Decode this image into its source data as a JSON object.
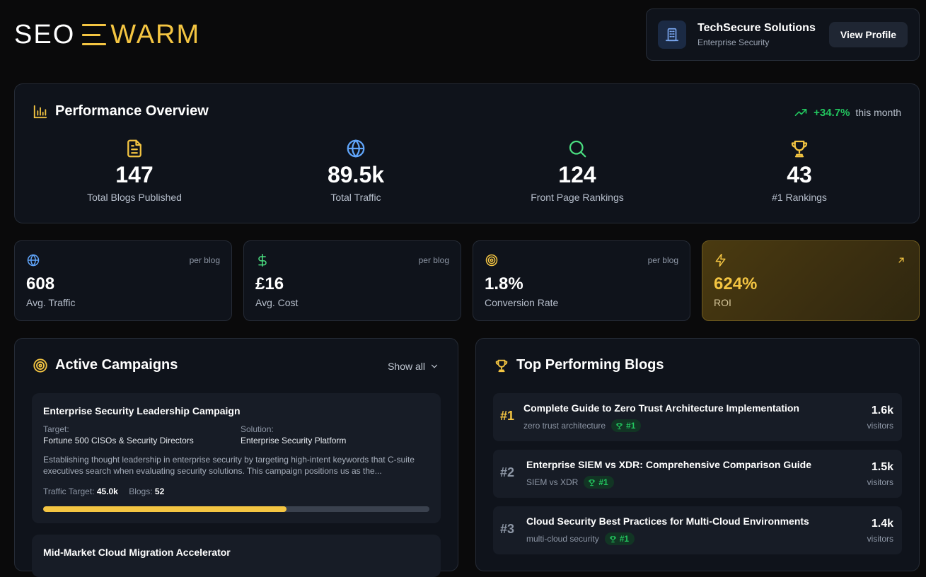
{
  "header": {
    "logo_left": "SEO",
    "logo_right": "WARM",
    "logo_colors": {
      "white": "#ffffff",
      "gold": "#f4c542"
    },
    "profile": {
      "icon": "building-icon",
      "name": "TechSecure Solutions",
      "subtitle": "Enterprise Security",
      "button_label": "View Profile"
    }
  },
  "performance": {
    "title": "Performance Overview",
    "title_icon": "bar-chart-icon",
    "trend_icon": "trending-up-icon",
    "trend_value": "+34.7%",
    "trend_label": "this month",
    "trend_color": "#22c55e",
    "stats": [
      {
        "icon": "document-icon",
        "value": "147",
        "label": "Total Blogs Published",
        "color": "#f4c542"
      },
      {
        "icon": "globe-icon",
        "value": "89.5k",
        "label": "Total Traffic",
        "color": "#60a5fa"
      },
      {
        "icon": "search-icon",
        "value": "124",
        "label": "Front Page Rankings",
        "color": "#4ade80"
      },
      {
        "icon": "trophy-icon",
        "value": "43",
        "label": "#1 Rankings",
        "color": "#f4c542"
      }
    ]
  },
  "metrics": [
    {
      "icon": "globe-icon",
      "per": "per blog",
      "value": "608",
      "label": "Avg. Traffic",
      "color": "#60a5fa"
    },
    {
      "icon": "dollar-icon",
      "per": "per blog",
      "value": "£16",
      "label": "Avg. Cost",
      "color": "#4ade80"
    },
    {
      "icon": "target-icon",
      "per": "per blog",
      "value": "1.8%",
      "label": "Conversion Rate",
      "color": "#f4c542"
    },
    {
      "icon": "lightning-icon",
      "value": "624%",
      "label": "ROI",
      "color": "#f4c542",
      "corner_icon": "arrow-up-right-icon"
    }
  ],
  "campaigns": {
    "title": "Active Campaigns",
    "title_icon": "target-icon",
    "show_all_label": "Show all",
    "items": [
      {
        "title": "Enterprise Security Leadership Campaign",
        "target_label": "Target:",
        "target_value": "Fortune 500 CISOs & Security Directors",
        "solution_label": "Solution:",
        "solution_value": "Enterprise Security Platform",
        "description": "Establishing thought leadership in enterprise security by targeting high-intent keywords that C-suite executives search when evaluating security solutions. This campaign positions us as the...",
        "traffic_target_label": "Traffic Target:",
        "traffic_target_value": "45.0k",
        "blogs_label": "Blogs:",
        "blogs_value": "52",
        "progress": 0.63
      },
      {
        "title": "Mid-Market Cloud Migration Accelerator"
      }
    ]
  },
  "top_blogs": {
    "title": "Top Performing Blogs",
    "title_icon": "trophy-icon",
    "items": [
      {
        "rank": "#1",
        "title": "Complete Guide to Zero Trust Architecture Implementation",
        "keyword": "zero trust architecture",
        "badge": "#1",
        "visitors": "1.6k",
        "visitors_label": "visitors"
      },
      {
        "rank": "#2",
        "title": "Enterprise SIEM vs XDR: Comprehensive Comparison Guide",
        "keyword": "SIEM vs XDR",
        "badge": "#1",
        "visitors": "1.5k",
        "visitors_label": "visitors"
      },
      {
        "rank": "#3",
        "title": "Cloud Security Best Practices for Multi-Cloud Environments",
        "keyword": "multi-cloud security",
        "badge": "#1",
        "visitors": "1.4k",
        "visitors_label": "visitors"
      }
    ]
  }
}
